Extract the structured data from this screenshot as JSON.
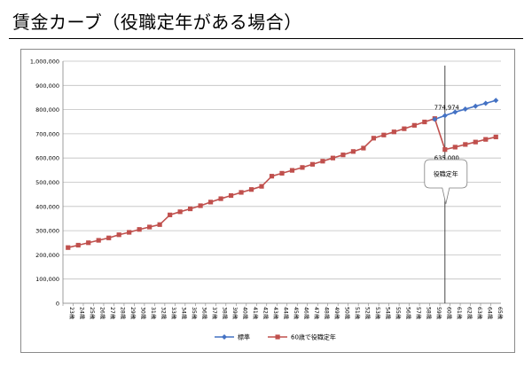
{
  "page": {
    "title": "賃金カーブ（役職定年がある場合）"
  },
  "chart_data": {
    "type": "line",
    "title": "",
    "xlabel": "",
    "ylabel": "",
    "ylim": [
      0,
      1000000
    ],
    "yticks": [
      0,
      100000,
      200000,
      300000,
      400000,
      500000,
      600000,
      700000,
      800000,
      900000,
      1000000
    ],
    "ytick_labels": [
      "0",
      "100,000",
      "200,000",
      "300,000",
      "400,000",
      "500,000",
      "600,000",
      "700,000",
      "800,000",
      "900,000",
      "1,000,000"
    ],
    "grid": true,
    "legend_position": "bottom",
    "categories": [
      "23歳",
      "24歳",
      "25歳",
      "26歳",
      "27歳",
      "28歳",
      "29歳",
      "30歳",
      "31歳",
      "32歳",
      "33歳",
      "34歳",
      "35歳",
      "36歳",
      "37歳",
      "38歳",
      "39歳",
      "40歳",
      "41歳",
      "42歳",
      "43歳",
      "44歳",
      "45歳",
      "46歳",
      "47歳",
      "48歳",
      "49歳",
      "50歳",
      "51歳",
      "52歳",
      "53歳",
      "54歳",
      "55歳",
      "56歳",
      "57歳",
      "58歳",
      "59歳",
      "60歳",
      "61歳",
      "62歳",
      "63歳",
      "64歳",
      "65歳"
    ],
    "series": [
      {
        "name": "標準",
        "color": "#4472C4",
        "marker": "diamond",
        "values": [
          null,
          null,
          null,
          null,
          null,
          null,
          null,
          null,
          null,
          null,
          null,
          null,
          null,
          null,
          null,
          null,
          null,
          null,
          null,
          null,
          null,
          null,
          null,
          null,
          null,
          null,
          null,
          null,
          null,
          null,
          null,
          null,
          null,
          null,
          null,
          null,
          760000,
          774974,
          790000,
          802000,
          814000,
          826000,
          838000
        ]
      },
      {
        "name": "60歳で役職定年",
        "color": "#C0504D",
        "marker": "square",
        "values": [
          230000,
          240000,
          250000,
          260000,
          270000,
          283000,
          293000,
          305000,
          315000,
          325000,
          365000,
          378000,
          390000,
          403000,
          418000,
          432000,
          445000,
          458000,
          470000,
          483000,
          525000,
          537000,
          549000,
          561000,
          574000,
          587000,
          600000,
          613000,
          627000,
          641000,
          682000,
          695000,
          708000,
          721000,
          735000,
          749000,
          763000,
          635000,
          645000,
          656000,
          666000,
          677000,
          687000
        ]
      }
    ],
    "annotations": [
      {
        "text": "774,974",
        "x": "60歳",
        "y": 774974
      },
      {
        "text": "635,000",
        "x": "60歳",
        "y": 635000
      },
      {
        "text": "役職定年",
        "type": "callout",
        "x": "60歳"
      }
    ],
    "reference_line": {
      "x": "60歳"
    }
  }
}
